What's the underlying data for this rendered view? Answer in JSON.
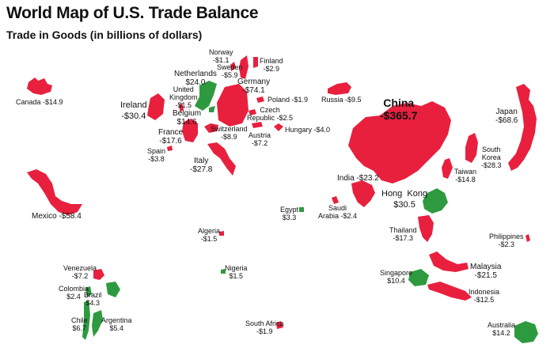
{
  "title": "World Map of U.S. Trade Balance",
  "subtitle": "Trade in Goods (in billions of dollars)",
  "colors": {
    "deficit": "#e8203e",
    "surplus": "#2e9a3f",
    "background": "#ffffff"
  },
  "countries": [
    {
      "id": "canada",
      "name": "Canada",
      "value": "-$14.9",
      "balance": "deficit"
    },
    {
      "id": "mexico",
      "name": "Mexico",
      "value": "-$58.4",
      "balance": "deficit"
    },
    {
      "id": "ireland",
      "name": "Ireland",
      "value": "-$30.4",
      "balance": "deficit"
    },
    {
      "id": "united-kingdom",
      "name": "United Kingdom",
      "value": "-$1.5",
      "balance": "deficit"
    },
    {
      "id": "netherlands",
      "name": "Netherlands",
      "value": "$24.0",
      "balance": "surplus"
    },
    {
      "id": "belgium",
      "name": "Belgium",
      "value": "$14.6",
      "balance": "surplus"
    },
    {
      "id": "france",
      "name": "France",
      "value": "-$17.6",
      "balance": "deficit"
    },
    {
      "id": "spain",
      "name": "Spain",
      "value": "-$3.8",
      "balance": "deficit"
    },
    {
      "id": "switzerland",
      "name": "Switzerland",
      "value": "-$8.9",
      "balance": "deficit"
    },
    {
      "id": "italy",
      "name": "Italy",
      "value": "-$27.8",
      "balance": "deficit"
    },
    {
      "id": "germany",
      "name": "Germany",
      "value": "-$74.1",
      "balance": "deficit"
    },
    {
      "id": "norway",
      "name": "Norway",
      "value": "-$1.1",
      "balance": "deficit"
    },
    {
      "id": "sweden",
      "name": "Sweden",
      "value": "-$5.9",
      "balance": "deficit"
    },
    {
      "id": "finland",
      "name": "Finland",
      "value": "-$2.9",
      "balance": "deficit"
    },
    {
      "id": "poland",
      "name": "Poland",
      "value": "-$1.9",
      "balance": "deficit"
    },
    {
      "id": "czech-republic",
      "name": "Czech Republic",
      "value": "-$2.5",
      "balance": "deficit"
    },
    {
      "id": "austria",
      "name": "Austria",
      "value": "-$7.2",
      "balance": "deficit"
    },
    {
      "id": "hungary",
      "name": "Hungary",
      "value": "-$4.0",
      "balance": "deficit"
    },
    {
      "id": "russia",
      "name": "Russia",
      "value": "-$9.5",
      "balance": "deficit"
    },
    {
      "id": "china",
      "name": "China",
      "value": "-$365.7",
      "balance": "deficit"
    },
    {
      "id": "japan",
      "name": "Japan",
      "value": "-$68.6",
      "balance": "deficit"
    },
    {
      "id": "south-korea",
      "name": "South Korea",
      "value": "-$28.3",
      "balance": "deficit"
    },
    {
      "id": "taiwan",
      "name": "Taiwan",
      "value": "-$14.8",
      "balance": "deficit"
    },
    {
      "id": "hong-kong",
      "name": "Hong Kong",
      "value": "$30.5",
      "balance": "surplus"
    },
    {
      "id": "india",
      "name": "India",
      "value": "-$23.2",
      "balance": "deficit"
    },
    {
      "id": "egypt",
      "name": "Egypt",
      "value": "$3.3",
      "balance": "surplus"
    },
    {
      "id": "saudi-arabia",
      "name": "Saudi Arabia",
      "value": "-$2.4",
      "balance": "deficit"
    },
    {
      "id": "algeria",
      "name": "Algeria",
      "value": "-$1.5",
      "balance": "deficit"
    },
    {
      "id": "nigeria",
      "name": "Nigeria",
      "value": "$1.5",
      "balance": "surplus"
    },
    {
      "id": "south-africa",
      "name": "South Africa",
      "value": "-$1.9",
      "balance": "deficit"
    },
    {
      "id": "thailand",
      "name": "Thailand",
      "value": "-$17.3",
      "balance": "deficit"
    },
    {
      "id": "philippines",
      "name": "Philippines",
      "value": "-$2.3",
      "balance": "deficit"
    },
    {
      "id": "malaysia",
      "name": "Malaysia",
      "value": "-$21.5",
      "balance": "deficit"
    },
    {
      "id": "singapore",
      "name": "Singapore",
      "value": "$10.4",
      "balance": "surplus"
    },
    {
      "id": "indonesia",
      "name": "Indonesia",
      "value": "-$12.5",
      "balance": "deficit"
    },
    {
      "id": "australia",
      "name": "Australia",
      "value": "$14.2",
      "balance": "surplus"
    },
    {
      "id": "venezuela",
      "name": "Venezuela",
      "value": "-$7.2",
      "balance": "deficit"
    },
    {
      "id": "colombia",
      "name": "Colombia",
      "value": "$2.4",
      "balance": "surplus"
    },
    {
      "id": "brazil",
      "name": "Brazil",
      "value": "$4.3",
      "balance": "surplus"
    },
    {
      "id": "chile",
      "name": "Chile",
      "value": "$6.7",
      "balance": "surplus"
    },
    {
      "id": "argentina",
      "name": "Argentina",
      "value": "$5.4",
      "balance": "surplus"
    }
  ],
  "label_text": {
    "united_kingdom": [
      "United",
      "Kingdom"
    ],
    "czech_republic": [
      "Czech",
      "Republic"
    ],
    "south_korea": [
      "South",
      "Korea"
    ],
    "hong_kong": "Hong  Kong",
    "saudi_arabia": [
      "Saudi",
      "Arabia"
    ]
  }
}
